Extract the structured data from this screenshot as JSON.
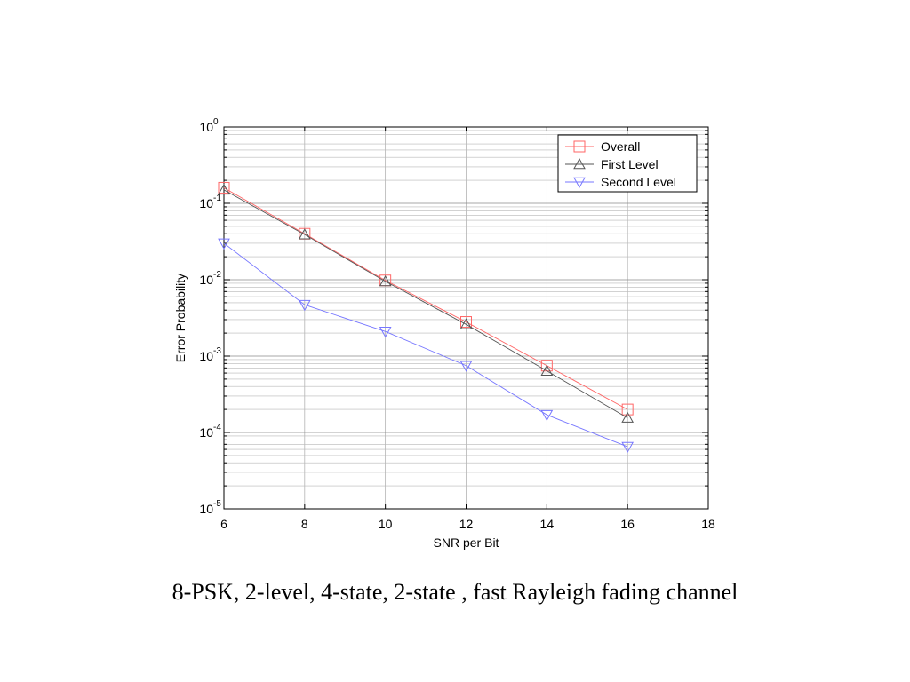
{
  "caption": "8-PSK, 2-level, 4-state, 2-state , fast Rayleigh fading channel",
  "chart_data": {
    "type": "line",
    "title": "",
    "xlabel": "SNR per Bit",
    "ylabel": "Error Probability",
    "xlim": [
      6,
      18
    ],
    "ylim": [
      1e-05,
      1
    ],
    "yscale": "log",
    "grid": true,
    "legend_position": "top-right",
    "x_ticks": [
      6,
      8,
      10,
      12,
      14,
      16,
      18
    ],
    "y_ticks": [
      {
        "value": 1e-05,
        "base": "10",
        "exp": "-5"
      },
      {
        "value": 0.0001,
        "base": "10",
        "exp": "-4"
      },
      {
        "value": 0.001,
        "base": "10",
        "exp": "-3"
      },
      {
        "value": 0.01,
        "base": "10",
        "exp": "-2"
      },
      {
        "value": 0.1,
        "base": "10",
        "exp": "-1"
      },
      {
        "value": 1,
        "base": "10",
        "exp": "0"
      }
    ],
    "series": [
      {
        "name": "Overall",
        "marker": "square",
        "color": "#ff6666",
        "x": [
          6,
          8,
          10,
          12,
          14,
          16
        ],
        "y": [
          0.16,
          0.04,
          0.0098,
          0.0028,
          0.00075,
          0.0002
        ]
      },
      {
        "name": "First Level",
        "marker": "triangle-up",
        "color": "#555555",
        "x": [
          6,
          8,
          10,
          12,
          14,
          16
        ],
        "y": [
          0.15,
          0.039,
          0.0095,
          0.0026,
          0.00064,
          0.000155
        ]
      },
      {
        "name": "Second Level",
        "marker": "triangle-down",
        "color": "#7777ff",
        "x": [
          6,
          8,
          10,
          12,
          14,
          16
        ],
        "y": [
          0.03,
          0.0047,
          0.0021,
          0.00075,
          0.00017,
          6.5e-05
        ]
      }
    ]
  }
}
